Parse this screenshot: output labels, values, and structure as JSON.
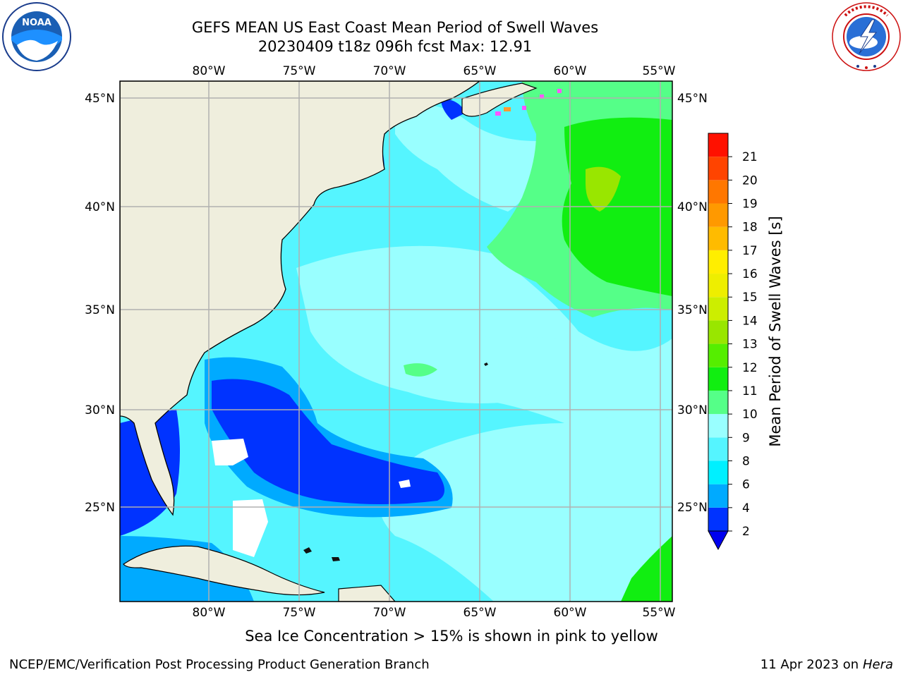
{
  "header": {
    "title_line1": "GEFS MEAN US East Coast Mean Period of Swell Waves",
    "title_line2": "20230409 t18z 096h fcst   Max: 12.91"
  },
  "logos": {
    "left": {
      "name": "noaa-logo",
      "text": "NOAA",
      "ring_text": "NATIONAL OCEANIC AND ATMOSPHERIC ADMINISTRATION · U.S. DEPARTMENT OF COMMERCE"
    },
    "right": {
      "name": "nws-logo",
      "ring_text": "NATIONAL WEATHER SERVICE"
    }
  },
  "map": {
    "lon_labels": [
      "80°W",
      "75°W",
      "70°W",
      "65°W",
      "60°W",
      "55°W"
    ],
    "lat_labels": [
      "45°N",
      "40°N",
      "35°N",
      "30°N",
      "25°N"
    ],
    "extent": {
      "lon_min": -85,
      "lon_max": -54.4,
      "lat_min": 20.2,
      "lat_max": 45.9
    },
    "land_color": "#efeedd",
    "grid_color": "#b0b0b0"
  },
  "colorbar": {
    "label": "Mean Period of Swell Waves [s]",
    "ticks": [
      "2",
      "4",
      "6",
      "8",
      "9",
      "10",
      "11",
      "12",
      "13",
      "14",
      "15",
      "16",
      "17",
      "18",
      "19",
      "20",
      "21"
    ],
    "colors": [
      "#0033ff",
      "#00aaff",
      "#00f0ff",
      "#55f5ff",
      "#99ffff",
      "#55ff88",
      "#11ee11",
      "#55ee00",
      "#99e600",
      "#ccee00",
      "#eeee00",
      "#ffee00",
      "#ffbb00",
      "#ff9900",
      "#ff7700",
      "#ff4400",
      "#ff1100"
    ],
    "extend_color": "#0000ee"
  },
  "caption": "Sea Ice Concentration > 15% is shown in pink to yellow",
  "footer": {
    "left": "NCEP/EMC/Verification Post Processing Product Generation Branch",
    "date": "11 Apr 2023 on ",
    "machine": "Hera"
  }
}
